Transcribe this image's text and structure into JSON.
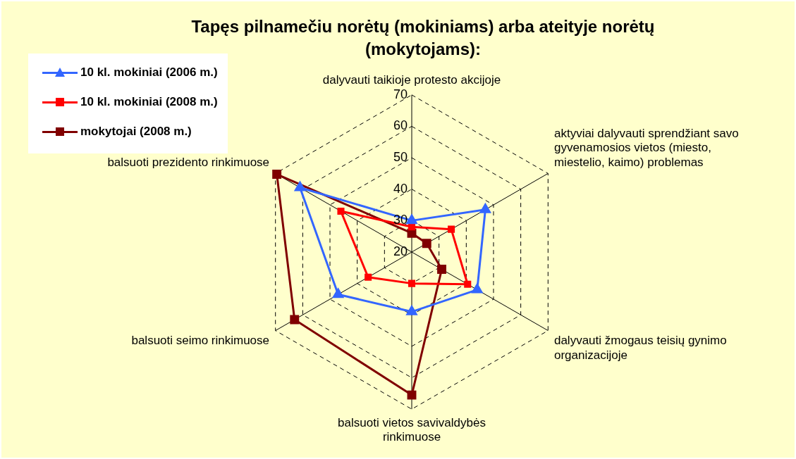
{
  "chart_data": {
    "type": "radar",
    "title": "Tapęs pilnamečiu norėtų (mokiniams) arba ateityje norėtų (mokytojams):",
    "categories": [
      "dalyvauti taikioje protesto akcijoje",
      "aktyviai dalyvauti sprendžiant savo gyvenamosios vietos (miesto, miestelio, kaimo) problemas",
      "dalyvauti žmogaus teisių gynimo organizacijoje",
      "balsuoti vietos savivaldybės rinkimuose",
      "balsuoti seimo rinkimuose",
      "balsuoti prezidento rinkimuose"
    ],
    "series": [
      {
        "name": "10 kl. mokiniai (2006 m.)",
        "color": "#3366ff",
        "marker": "triangle",
        "values": [
          30,
          47,
          44,
          39,
          47,
          61
        ]
      },
      {
        "name": "10 kl. mokiniai (2008 m.)",
        "color": "#ff0000",
        "marker": "square",
        "values": [
          28,
          34.5,
          40.5,
          30,
          36,
          46
        ]
      },
      {
        "name": "mokytojai (2008 m.)",
        "color": "#800000",
        "marker": "square",
        "values": [
          26,
          25.5,
          31,
          65.5,
          63,
          69.5
        ]
      }
    ],
    "ylim": [
      20,
      70
    ],
    "yticks": [
      20,
      30,
      40,
      50,
      60,
      70
    ],
    "grid": true,
    "legend": "top left"
  }
}
